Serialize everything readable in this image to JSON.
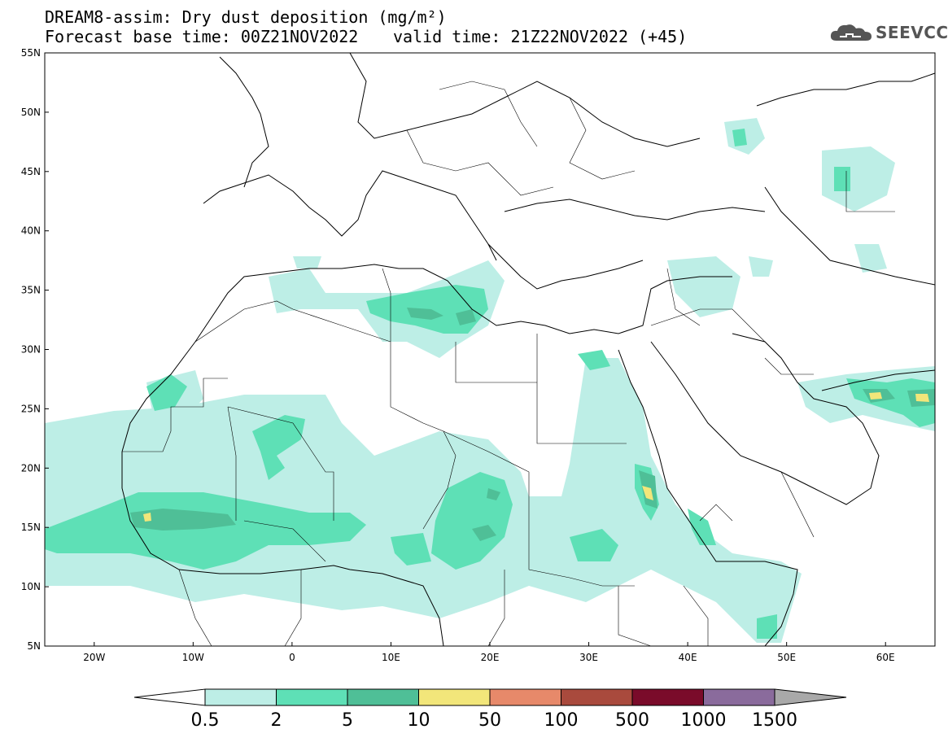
{
  "header": {
    "title": "DREAM8-assim: Dry dust deposition (mg/m²)",
    "base_time": "Forecast base time: 00Z21NOV2022",
    "valid_time": "valid time: 21Z22NOV2022 (+45)"
  },
  "logo": {
    "text": "SEEVCCC",
    "icon": "cloud-icon"
  },
  "map": {
    "lon_range": [
      -25,
      65
    ],
    "lat_range": [
      5,
      55
    ],
    "lat_labels": [
      "55N",
      "50N",
      "45N",
      "40N",
      "35N",
      "30N",
      "25N",
      "20N",
      "15N",
      "10N",
      "5N"
    ],
    "lon_labels": [
      "20W",
      "10W",
      "0",
      "10E",
      "20E",
      "30E",
      "40E",
      "50E",
      "60E"
    ],
    "colors": {
      "level1": "#bdeee6",
      "level2": "#5ee0b6",
      "level3": "#4fbf97",
      "level4": "#f2e67a",
      "level5": "#e7896a",
      "level6": "#a94a3d",
      "level7": "#7a0b2a",
      "level8": "#8a6b9c",
      "over": "#a9a9a9"
    }
  },
  "colorbar": {
    "labels": [
      "0.5",
      "2",
      "5",
      "10",
      "50",
      "100",
      "500",
      "1000",
      "1500"
    ],
    "colors": [
      "#bdeee6",
      "#5ee0b6",
      "#4fbf97",
      "#f2e67a",
      "#e7896a",
      "#a94a3d",
      "#7a0b2a",
      "#8a6b9c"
    ]
  }
}
